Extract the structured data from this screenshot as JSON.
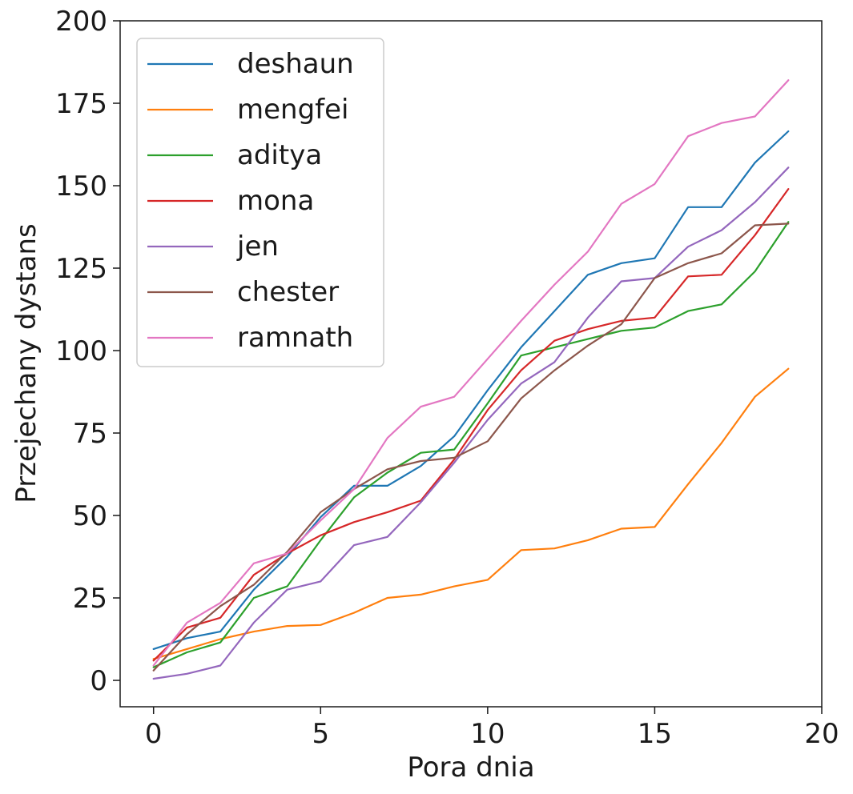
{
  "chart_data": {
    "type": "line",
    "title": "",
    "xlabel": "Pora dnia",
    "ylabel": "Przejechany dystans",
    "xlim": [
      -1,
      20
    ],
    "ylim": [
      -8,
      200
    ],
    "xticks": [
      0,
      5,
      10,
      15,
      20
    ],
    "yticks": [
      0,
      25,
      50,
      75,
      100,
      125,
      150,
      175,
      200
    ],
    "grid": false,
    "legend_position": "top-left",
    "x": [
      0,
      1,
      2,
      3,
      4,
      5,
      6,
      7,
      8,
      9,
      10,
      11,
      12,
      13,
      14,
      15,
      16,
      17,
      18,
      19
    ],
    "series": [
      {
        "name": "deshaun",
        "color": "#1f77b4",
        "values": [
          9.5,
          12.8,
          14.8,
          27.5,
          37.5,
          49.5,
          59.0,
          59.0,
          65.0,
          74.0,
          88.0,
          101.0,
          112.0,
          123.0,
          126.5,
          128.0,
          143.5,
          143.5,
          157.0,
          166.5
        ]
      },
      {
        "name": "mengfei",
        "color": "#ff7f0e",
        "values": [
          6.5,
          9.5,
          12.5,
          14.8,
          16.5,
          16.8,
          20.5,
          25.0,
          26.0,
          28.5,
          30.5,
          39.5,
          40.0,
          42.5,
          46.0,
          46.5,
          59.5,
          72.0,
          86.0,
          94.5
        ]
      },
      {
        "name": "aditya",
        "color": "#2ca02c",
        "values": [
          4.0,
          8.5,
          11.5,
          25.0,
          28.5,
          42.5,
          55.5,
          63.0,
          69.0,
          70.0,
          84.0,
          98.5,
          101.0,
          103.5,
          106.0,
          107.0,
          112.0,
          114.0,
          124.0,
          139.0
        ]
      },
      {
        "name": "mona",
        "color": "#d62728",
        "values": [
          6.0,
          16.0,
          19.0,
          32.0,
          38.5,
          44.0,
          48.0,
          51.0,
          54.5,
          67.0,
          82.0,
          94.0,
          103.0,
          106.5,
          109.0,
          110.0,
          122.5,
          123.0,
          135.0,
          149.0
        ]
      },
      {
        "name": "jen",
        "color": "#9467bd",
        "values": [
          0.5,
          2.0,
          4.5,
          17.5,
          27.5,
          30.0,
          41.0,
          43.5,
          54.0,
          66.0,
          79.0,
          90.0,
          96.5,
          110.0,
          121.0,
          122.0,
          131.5,
          136.5,
          145.0,
          155.5
        ]
      },
      {
        "name": "chester",
        "color": "#8c564b",
        "values": [
          3.0,
          14.0,
          22.5,
          29.0,
          39.0,
          51.0,
          58.0,
          64.0,
          66.5,
          67.5,
          72.5,
          85.5,
          94.0,
          101.5,
          108.0,
          122.0,
          126.5,
          129.5,
          138.0,
          138.5
        ]
      },
      {
        "name": "ramnath",
        "color": "#e377c2",
        "values": [
          4.5,
          17.5,
          23.5,
          35.5,
          38.5,
          48.5,
          58.0,
          73.5,
          83.0,
          86.0,
          97.5,
          109.0,
          120.0,
          130.0,
          144.5,
          150.5,
          165.0,
          169.0,
          171.0,
          182.0
        ]
      }
    ]
  }
}
